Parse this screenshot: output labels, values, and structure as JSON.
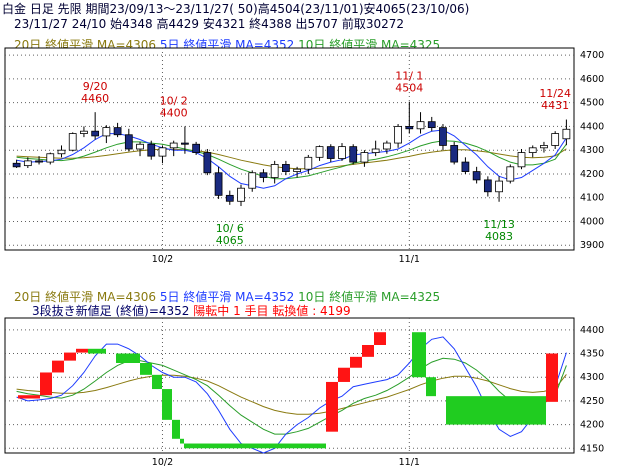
{
  "header": {
    "product": "白金 日足 先限",
    "line1": "期間23/09/13～23/11/27( 50)高4504(23/11/01)安4065(23/10/06)",
    "line2": "23/11/27 24/10 始4348 高4429 安4321 終4388 出5707 前取30272"
  },
  "legend": {
    "ma20": "20日 終値平滑 MA=4306",
    "ma5": "5日 終値平滑 MA=4352",
    "ma10": "10日 終値平滑 MA=4325"
  },
  "kagi_info": {
    "method": "3段抜き新値足 (終値)=4352",
    "state": "陽転中",
    "step": "1 手目",
    "turn": "転換値 : 4199"
  },
  "colors": {
    "up_candle": "#ffffff",
    "down_candle": "#1a2a80",
    "ma5": "#1e3cff",
    "ma10": "#2a9e2a",
    "ma20": "#8a7a10",
    "brick_up": "#ff1414",
    "brick_down": "#20cc20",
    "grid": "#606060",
    "high_label": "#cc0000",
    "low_label": "#008800"
  },
  "chart_data": [
    {
      "type": "candlestick",
      "x_labels": [
        "10/2",
        "11/1"
      ],
      "y_ticks": [
        3900,
        4000,
        4100,
        4200,
        4300,
        4400,
        4500,
        4600,
        4700
      ],
      "ylim": [
        3880,
        4730
      ],
      "annotations": [
        {
          "date": "9/20",
          "value": "4460",
          "kind": "high"
        },
        {
          "date": "10/ 2",
          "value": "4400",
          "kind": "high"
        },
        {
          "date": "10/ 6",
          "value": "4065",
          "kind": "low"
        },
        {
          "date": "11/ 1",
          "value": "4504",
          "kind": "high"
        },
        {
          "date": "11/13",
          "value": "4083",
          "kind": "low"
        },
        {
          "date": "11/24",
          "value": "4431",
          "kind": "high"
        }
      ],
      "ohlc": [
        [
          4245,
          4260,
          4225,
          4230
        ],
        [
          4235,
          4270,
          4225,
          4255
        ],
        [
          4255,
          4275,
          4240,
          4250
        ],
        [
          4250,
          4290,
          4240,
          4285
        ],
        [
          4285,
          4320,
          4270,
          4300
        ],
        [
          4300,
          4375,
          4295,
          4370
        ],
        [
          4370,
          4400,
          4355,
          4380
        ],
        [
          4380,
          4460,
          4345,
          4360
        ],
        [
          4360,
          4405,
          4330,
          4395
        ],
        [
          4395,
          4415,
          4355,
          4365
        ],
        [
          4365,
          4390,
          4295,
          4305
        ],
        [
          4305,
          4335,
          4275,
          4325
        ],
        [
          4325,
          4340,
          4260,
          4275
        ],
        [
          4275,
          4320,
          4245,
          4310
        ],
        [
          4310,
          4340,
          4275,
          4330
        ],
        [
          4330,
          4400,
          4285,
          4325
        ],
        [
          4325,
          4335,
          4280,
          4290
        ],
        [
          4290,
          4305,
          4195,
          4205
        ],
        [
          4205,
          4230,
          4095,
          4110
        ],
        [
          4110,
          4130,
          4070,
          4085
        ],
        [
          4085,
          4155,
          4065,
          4140
        ],
        [
          4140,
          4215,
          4125,
          4205
        ],
        [
          4205,
          4220,
          4165,
          4185
        ],
        [
          4185,
          4255,
          4160,
          4240
        ],
        [
          4240,
          4255,
          4195,
          4210
        ],
        [
          4210,
          4230,
          4185,
          4220
        ],
        [
          4220,
          4280,
          4200,
          4270
        ],
        [
          4270,
          4320,
          4255,
          4315
        ],
        [
          4315,
          4325,
          4250,
          4265
        ],
        [
          4265,
          4330,
          4255,
          4315
        ],
        [
          4315,
          4325,
          4240,
          4250
        ],
        [
          4250,
          4300,
          4230,
          4290
        ],
        [
          4290,
          4340,
          4275,
          4305
        ],
        [
          4305,
          4340,
          4285,
          4330
        ],
        [
          4330,
          4410,
          4310,
          4400
        ],
        [
          4400,
          4504,
          4370,
          4390
        ],
        [
          4390,
          4460,
          4370,
          4420
        ],
        [
          4420,
          4440,
          4380,
          4395
        ],
        [
          4395,
          4410,
          4300,
          4320
        ],
        [
          4320,
          4335,
          4240,
          4250
        ],
        [
          4250,
          4270,
          4200,
          4210
        ],
        [
          4210,
          4230,
          4160,
          4175
        ],
        [
          4175,
          4190,
          4105,
          4125
        ],
        [
          4125,
          4190,
          4083,
          4170
        ],
        [
          4170,
          4240,
          4160,
          4230
        ],
        [
          4230,
          4305,
          4220,
          4290
        ],
        [
          4290,
          4320,
          4270,
          4310
        ],
        [
          4310,
          4335,
          4290,
          4320
        ],
        [
          4320,
          4380,
          4305,
          4370
        ],
        [
          4348,
          4429,
          4321,
          4388
        ]
      ],
      "ma5": [
        4258,
        4250,
        4252,
        4255,
        4262,
        4282,
        4310,
        4345,
        4370,
        4370,
        4360,
        4345,
        4325,
        4310,
        4300,
        4300,
        4290,
        4265,
        4230,
        4190,
        4160,
        4150,
        4140,
        4150,
        4180,
        4200,
        4215,
        4235,
        4250,
        4260,
        4280,
        4285,
        4290,
        4295,
        4305,
        4330,
        4360,
        4380,
        4385,
        4360,
        4320,
        4280,
        4230,
        4190,
        4175,
        4185,
        4215,
        4245,
        4280,
        4352
      ],
      "ma10": [
        4270,
        4265,
        4262,
        4258,
        4256,
        4262,
        4275,
        4292,
        4310,
        4325,
        4335,
        4335,
        4330,
        4325,
        4315,
        4305,
        4295,
        4282,
        4262,
        4240,
        4220,
        4205,
        4190,
        4180,
        4180,
        4185,
        4192,
        4205,
        4218,
        4230,
        4245,
        4255,
        4262,
        4272,
        4285,
        4300,
        4318,
        4332,
        4340,
        4338,
        4330,
        4315,
        4295,
        4270,
        4250,
        4238,
        4238,
        4245,
        4262,
        4325
      ],
      "ma20": [
        4275,
        4272,
        4270,
        4268,
        4266,
        4266,
        4268,
        4272,
        4278,
        4285,
        4292,
        4298,
        4302,
        4304,
        4304,
        4302,
        4298,
        4292,
        4282,
        4270,
        4258,
        4248,
        4238,
        4230,
        4225,
        4222,
        4222,
        4224,
        4228,
        4234,
        4240,
        4246,
        4252,
        4258,
        4266,
        4274,
        4284,
        4292,
        4298,
        4302,
        4302,
        4298,
        4292,
        4284,
        4276,
        4270,
        4268,
        4270,
        4276,
        4306
      ]
    },
    {
      "type": "three-line-break",
      "y_ticks": [
        4150,
        4200,
        4250,
        4300,
        4350,
        4400
      ],
      "ylim": [
        4140,
        4425
      ],
      "x_labels": [
        "10/2",
        "11/1"
      ],
      "bricks": [
        {
          "dir": "up",
          "low": 4255,
          "high": 4262
        },
        {
          "dir": "up",
          "low": 4262,
          "high": 4310
        },
        {
          "dir": "up",
          "low": 4310,
          "high": 4335
        },
        {
          "dir": "up",
          "low": 4335,
          "high": 4352
        },
        {
          "dir": "up",
          "low": 4352,
          "high": 4360
        },
        {
          "dir": "down",
          "low": 4350,
          "high": 4360
        },
        {
          "dir": "down",
          "low": 4330,
          "high": 4350
        },
        {
          "dir": "down",
          "low": 4305,
          "high": 4330
        },
        {
          "dir": "down",
          "low": 4275,
          "high": 4305
        },
        {
          "dir": "down",
          "low": 4210,
          "high": 4275
        },
        {
          "dir": "down",
          "low": 4170,
          "high": 4210
        },
        {
          "dir": "down",
          "low": 4160,
          "high": 4170
        },
        {
          "dir": "down",
          "low": 4150,
          "high": 4160
        },
        {
          "dir": "up",
          "low": 4185,
          "high": 4290
        },
        {
          "dir": "up",
          "low": 4290,
          "high": 4320
        },
        {
          "dir": "up",
          "low": 4320,
          "high": 4343
        },
        {
          "dir": "up",
          "low": 4343,
          "high": 4368
        },
        {
          "dir": "up",
          "low": 4368,
          "high": 4395
        },
        {
          "dir": "down",
          "low": 4300,
          "high": 4395
        },
        {
          "dir": "down",
          "low": 4260,
          "high": 4300
        },
        {
          "dir": "down",
          "low": 4200,
          "high": 4260
        },
        {
          "dir": "up",
          "low": 4248,
          "high": 4350
        }
      ]
    }
  ]
}
